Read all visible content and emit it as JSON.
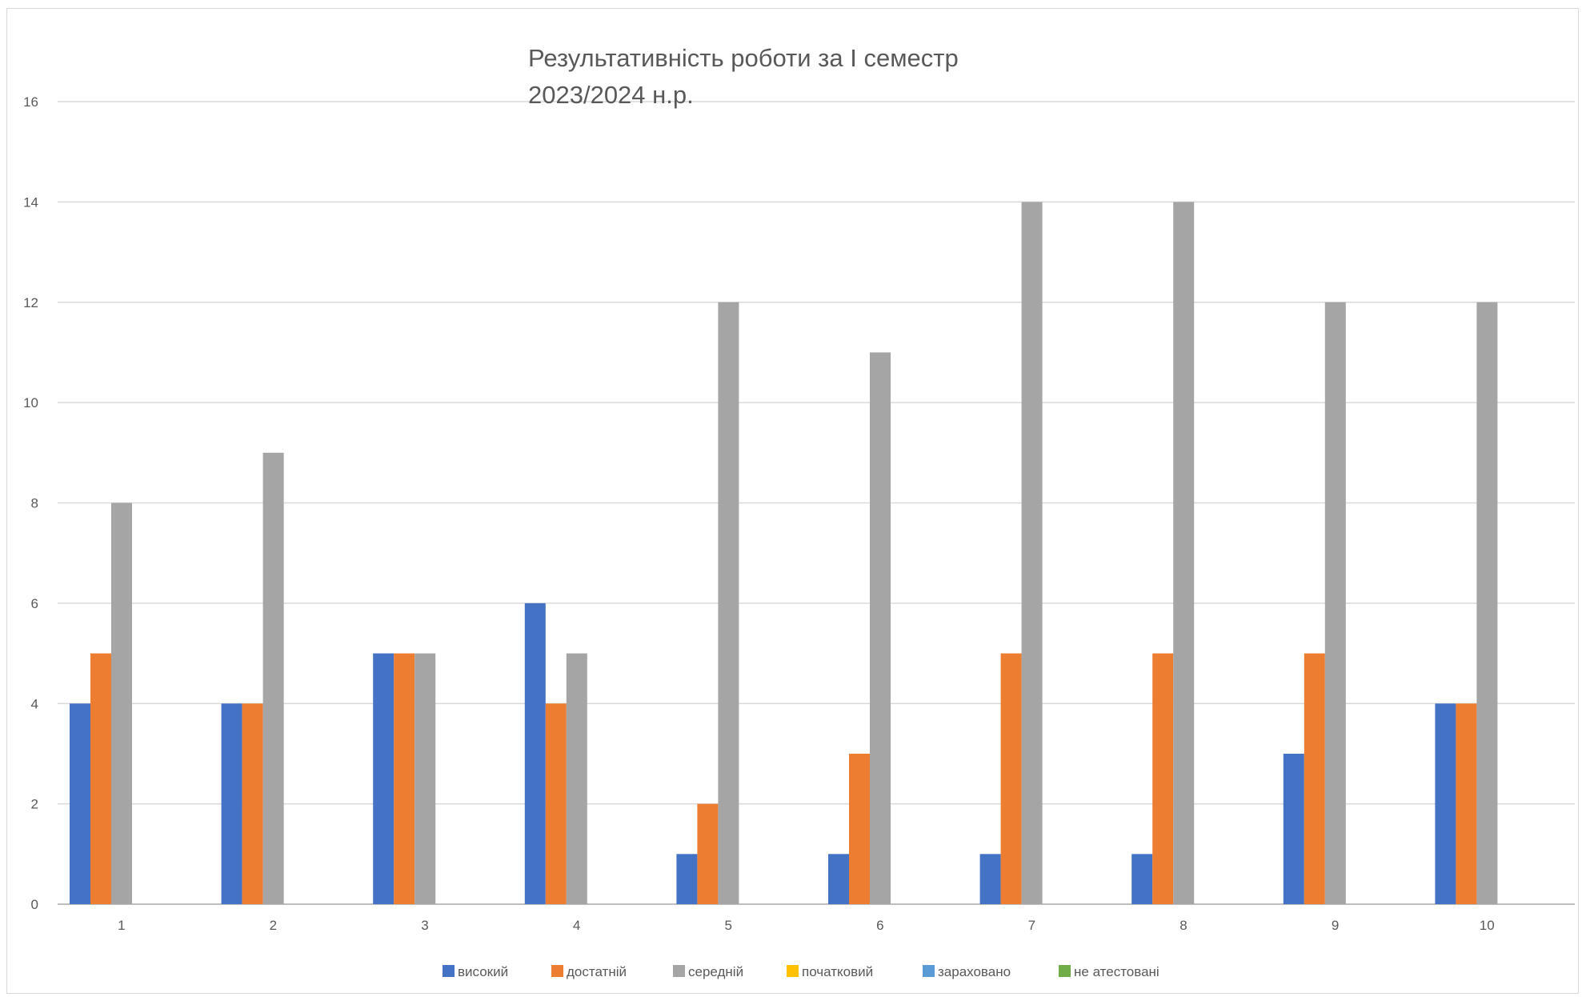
{
  "chart_data": {
    "type": "bar",
    "title": [
      "Результативність роботи за І семестр",
      "2023/2024 н.р."
    ],
    "categories": [
      "1",
      "2",
      "3",
      "4",
      "5",
      "6",
      "7",
      "8",
      "9",
      "10"
    ],
    "series": [
      {
        "name": "високий",
        "color": "#4472c4",
        "values": [
          4,
          4,
          5,
          6,
          1,
          1,
          1,
          1,
          3,
          4
        ]
      },
      {
        "name": "достатній",
        "color": "#ed7d31",
        "values": [
          5,
          4,
          5,
          4,
          2,
          3,
          5,
          5,
          5,
          4
        ]
      },
      {
        "name": "середній",
        "color": "#a5a5a5",
        "values": [
          8,
          9,
          5,
          5,
          12,
          11,
          14,
          14,
          12,
          12
        ]
      },
      {
        "name": "початковий",
        "color": "#ffc000",
        "values": [
          0,
          0,
          0,
          0,
          0,
          0,
          0,
          0,
          0,
          0
        ]
      },
      {
        "name": "зараховано",
        "color": "#5b9bd5",
        "values": [
          0,
          0,
          0,
          0,
          0,
          0,
          0,
          0,
          0,
          0
        ]
      },
      {
        "name": "не атестовані",
        "color": "#70ad47",
        "values": [
          0,
          0,
          0,
          0,
          0,
          0,
          0,
          0,
          0,
          0
        ]
      }
    ],
    "yticks": [
      0,
      2,
      4,
      6,
      8,
      10,
      12,
      14,
      16
    ],
    "ylim": [
      0,
      16
    ],
    "grid": true,
    "legend": "bottom"
  }
}
